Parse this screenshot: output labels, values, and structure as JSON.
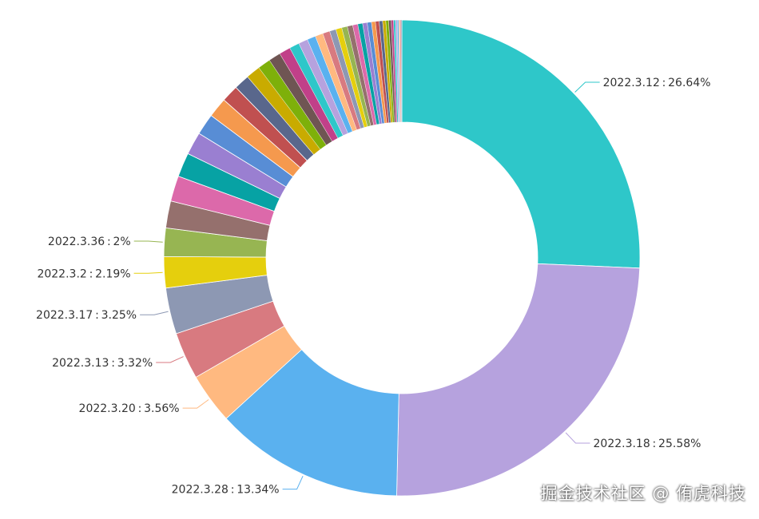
{
  "chart_data": {
    "type": "pie",
    "donut": true,
    "title": "",
    "slices": [
      {
        "label": "2022.3.12",
        "value": 26.64,
        "display": "26.64%",
        "color": "#2ec7c9",
        "labeled": true
      },
      {
        "label": "2022.3.18",
        "value": 25.58,
        "display": "25.58%",
        "color": "#b6a2de",
        "labeled": true
      },
      {
        "label": "2022.3.28",
        "value": 13.34,
        "display": "13.34%",
        "color": "#5ab1ef",
        "labeled": true
      },
      {
        "label": "2022.3.20",
        "value": 3.56,
        "display": "3.56%",
        "color": "#ffb980",
        "labeled": true
      },
      {
        "label": "2022.3.13",
        "value": 3.32,
        "display": "3.32%",
        "color": "#d87a80",
        "labeled": true
      },
      {
        "label": "2022.3.17",
        "value": 3.25,
        "display": "3.25%",
        "color": "#8d98b3",
        "labeled": true
      },
      {
        "label": "2022.3.2",
        "value": 2.19,
        "display": "2.19%",
        "color": "#e5cf0d",
        "labeled": true
      },
      {
        "label": "2022.3.36",
        "value": 2.0,
        "display": "2%",
        "color": "#97b552",
        "labeled": true
      },
      {
        "value": 1.9,
        "color": "#95706d"
      },
      {
        "value": 1.8,
        "color": "#dc69aa"
      },
      {
        "value": 1.7,
        "color": "#07a2a4"
      },
      {
        "value": 1.6,
        "color": "#9a7fd1"
      },
      {
        "value": 1.5,
        "color": "#588dd5"
      },
      {
        "value": 1.4,
        "color": "#f5994e"
      },
      {
        "value": 1.2,
        "color": "#c05050"
      },
      {
        "value": 1.1,
        "color": "#59678c"
      },
      {
        "value": 1.0,
        "color": "#c9ab00"
      },
      {
        "value": 0.9,
        "color": "#7eb00a"
      },
      {
        "value": 0.85,
        "color": "#6f5553"
      },
      {
        "value": 0.8,
        "color": "#c14089"
      },
      {
        "value": 0.7,
        "color": "#2ec7c9"
      },
      {
        "value": 0.65,
        "color": "#b6a2de"
      },
      {
        "value": 0.6,
        "color": "#5ab1ef"
      },
      {
        "value": 0.55,
        "color": "#ffb980"
      },
      {
        "value": 0.5,
        "color": "#d87a80"
      },
      {
        "value": 0.45,
        "color": "#8d98b3"
      },
      {
        "value": 0.42,
        "color": "#e5cf0d"
      },
      {
        "value": 0.4,
        "color": "#97b552"
      },
      {
        "value": 0.38,
        "color": "#95706d"
      },
      {
        "value": 0.36,
        "color": "#dc69aa"
      },
      {
        "value": 0.34,
        "color": "#07a2a4"
      },
      {
        "value": 0.32,
        "color": "#9a7fd1"
      },
      {
        "value": 0.3,
        "color": "#588dd5"
      },
      {
        "value": 0.28,
        "color": "#f5994e"
      },
      {
        "value": 0.26,
        "color": "#c05050"
      },
      {
        "value": 0.24,
        "color": "#59678c"
      },
      {
        "value": 0.22,
        "color": "#c9ab00"
      },
      {
        "value": 0.2,
        "color": "#7eb00a"
      },
      {
        "value": 0.18,
        "color": "#6f5553"
      },
      {
        "value": 0.16,
        "color": "#c14089"
      },
      {
        "value": 0.14,
        "color": "#2ec7c9"
      },
      {
        "value": 0.12,
        "color": "#b6a2de"
      },
      {
        "value": 0.1,
        "color": "#5ab1ef"
      },
      {
        "value": 0.08,
        "color": "#ffb980"
      },
      {
        "value": 0.08,
        "color": "#d87a80"
      },
      {
        "value": 0.06,
        "color": "#8d98b3"
      }
    ]
  },
  "watermark": {
    "text": "掘金技术社区 @ 侑虎科技"
  }
}
